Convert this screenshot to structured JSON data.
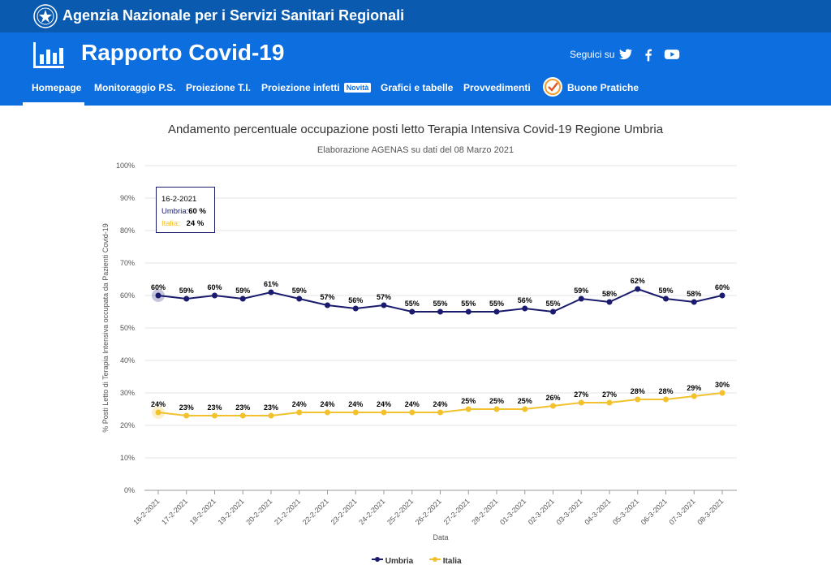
{
  "topbar": {
    "agency": "Agenzia Nazionale per i Servizi Sanitari Regionali",
    "emblem_icon": "italy-emblem-icon"
  },
  "header": {
    "title": "Rapporto Covid-19",
    "logo_icon": "bar-chart-icon",
    "follow_label": "Seguici su",
    "social_icons": [
      "twitter-icon",
      "facebook-icon",
      "youtube-icon"
    ]
  },
  "nav": {
    "items": [
      "Homepage",
      "Monitoraggio P.S.",
      "Proiezione T.I.",
      "Proiezione infetti",
      "Grafici e tabelle",
      "Provvedimenti",
      "Buone Pratiche"
    ],
    "badge": "Novità",
    "active": "Homepage"
  },
  "chart": {
    "title": "Andamento percentuale occupazione posti letto Terapia Intensiva Covid-19 Regione Umbria",
    "subtitle": "Elaborazione AGENAS su dati del 08 Marzo 2021"
  },
  "chart_data": {
    "type": "line",
    "title": "Andamento percentuale occupazione posti letto Terapia Intensiva Covid-19 Regione Umbria",
    "subtitle": "Elaborazione AGENAS su dati del 08 Marzo 2021",
    "xlabel": "Data",
    "ylabel": "% Posti Letto di Terapia Intensiva occupata da Pazienti Covid-19",
    "ylim": [
      0,
      100
    ],
    "yticks": [
      "0%",
      "10%",
      "20%",
      "30%",
      "40%",
      "50%",
      "60%",
      "70%",
      "80%",
      "90%",
      "100%"
    ],
    "grid": true,
    "legend_position": "bottom",
    "categories": [
      "16-2-2021",
      "17-2-2021",
      "18-2-2021",
      "19-2-2021",
      "20-2-2021",
      "21-2-2021",
      "22-2-2021",
      "23-2-2021",
      "24-2-2021",
      "25-2-2021",
      "26-2-2021",
      "27-2-2021",
      "28-2-2021",
      "01-3-2021",
      "02-3-2021",
      "03-3-2021",
      "04-3-2021",
      "05-3-2021",
      "06-3-2021",
      "07-3-2021",
      "08-3-2021"
    ],
    "series": [
      {
        "name": "Umbria",
        "color": "#1b1b6e",
        "values": [
          60,
          59,
          60,
          59,
          61,
          59,
          57,
          56,
          57,
          55,
          55,
          55,
          55,
          56,
          55,
          59,
          58,
          62,
          59,
          58,
          60
        ]
      },
      {
        "name": "Italia",
        "color": "#f2c12e",
        "values": [
          24,
          23,
          23,
          23,
          23,
          24,
          24,
          24,
          24,
          24,
          24,
          25,
          25,
          25,
          26,
          27,
          27,
          28,
          28,
          29,
          30
        ]
      }
    ]
  },
  "tooltip": {
    "date": "16-2-2021",
    "umbria_label": "Umbria:",
    "umbria_value": "60 %",
    "italia_label": "Italia:",
    "italia_value": "24 %"
  }
}
